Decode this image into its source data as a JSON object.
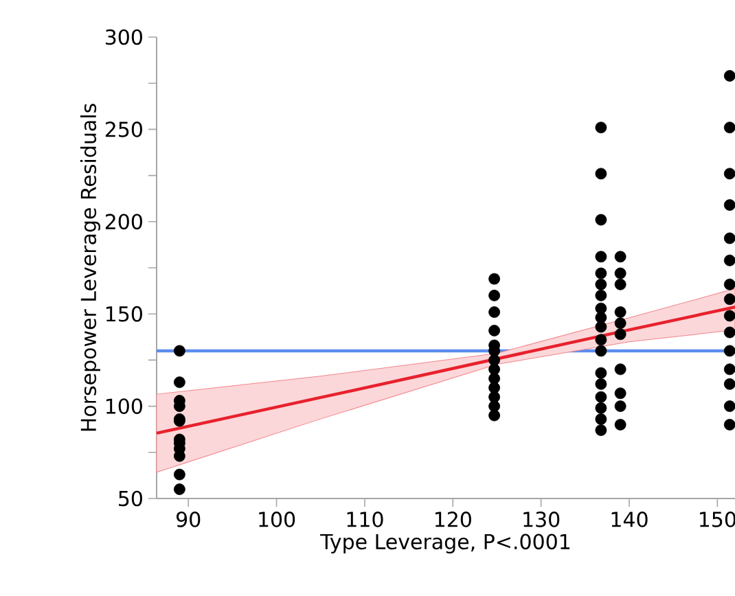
{
  "chart_data": {
    "type": "scatter",
    "xlabel": "Type Leverage, P<.0001",
    "ylabel": "Horsepower Leverage Residuals",
    "xlim": [
      86.4,
      152
    ],
    "ylim": [
      50,
      300
    ],
    "xticks": [
      90,
      100,
      110,
      120,
      130,
      140,
      150
    ],
    "yticks": [
      50,
      {
        "value": 75,
        "label": null
      },
      100,
      {
        "value": 125,
        "label": null
      },
      150,
      {
        "value": 175,
        "label": null
      },
      200,
      {
        "value": 225,
        "label": null
      },
      250,
      {
        "value": 275,
        "label": null
      },
      300
    ],
    "grid": false,
    "series": [
      {
        "color": "#000000",
        "x": [
          89,
          89,
          89,
          89,
          89,
          89,
          89,
          89,
          89,
          89,
          89,
          89,
          124.7,
          124.7,
          124.7,
          124.7,
          124.7,
          124.7,
          124.7,
          124.7,
          124.7,
          124.7,
          124.7,
          124.7,
          124.7,
          136.8,
          136.8,
          136.8,
          136.8,
          136.8,
          136.8,
          136.8,
          136.8,
          136.8,
          136.8,
          136.8,
          136.8,
          136.8,
          136.8,
          136.8,
          136.8,
          136.8,
          136.8,
          139,
          139,
          139,
          139,
          139,
          139,
          139,
          139,
          139,
          139,
          151.4,
          151.4,
          151.4,
          151.4,
          151.4,
          151.4,
          151.4,
          151.4,
          151.4,
          151.4,
          151.4,
          151.4,
          151.4,
          151.4,
          151.4
        ],
        "values": [
          130,
          113,
          103,
          100,
          93,
          92,
          82,
          80,
          77,
          73,
          63,
          55,
          169,
          160,
          151,
          141,
          133,
          130,
          125,
          120,
          115,
          110,
          105,
          100,
          95,
          251,
          226,
          201,
          181,
          172,
          166,
          160,
          153,
          148,
          143,
          136,
          130,
          118,
          112,
          105,
          99,
          93,
          87,
          181,
          172,
          166,
          151,
          145,
          139,
          120,
          107,
          100,
          90,
          279,
          251,
          226,
          209,
          191,
          179,
          166,
          158,
          149,
          140,
          130,
          120,
          112,
          100,
          90
        ]
      },
      {
        "type": "line",
        "color": "#e8212d",
        "x": [
          86.4,
          105,
          125,
          140,
          152
        ],
        "values": [
          85.4,
          104.7,
          125.7,
          141.4,
          153.7
        ],
        "lower": [
          64.2,
          93.1,
          122.7,
          134.9,
          141.3
        ],
        "upper": [
          106.5,
          116.3,
          128.7,
          147.9,
          163.7
        ]
      }
    ],
    "ref_lines": [
      {
        "axis": "y",
        "value": 130,
        "color": "#5b8def"
      }
    ]
  }
}
